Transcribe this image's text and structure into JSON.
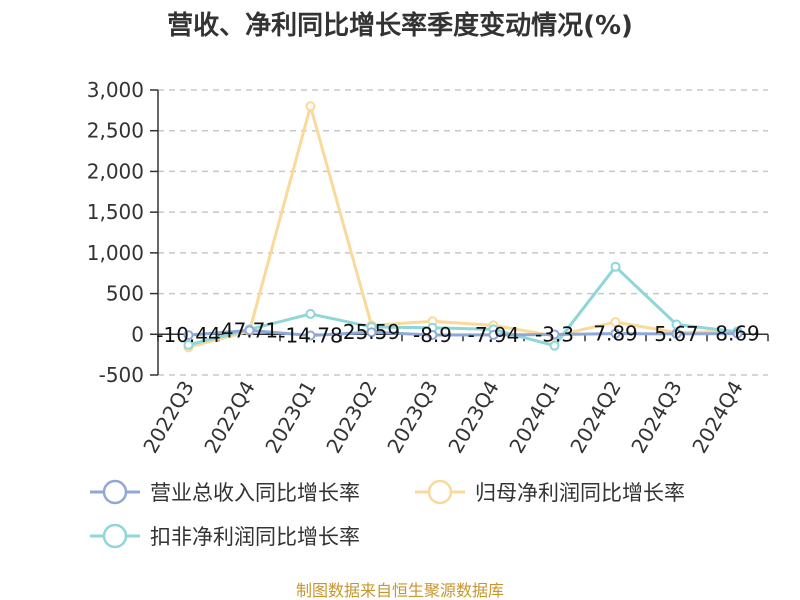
{
  "chart_data": {
    "type": "line",
    "title": "营收、净利同比增长率季度变动情况(%)",
    "categories": [
      "2022Q3",
      "2022Q4",
      "2023Q1",
      "2023Q2",
      "2023Q3",
      "2023Q4",
      "2024Q1",
      "2024Q2",
      "2024Q3",
      "2024Q4"
    ],
    "ylim": [
      -500,
      3000
    ],
    "yticks": [
      -500,
      0,
      500,
      1000,
      1500,
      2000,
      2500,
      3000
    ],
    "ytick_labels": [
      "-500",
      "0",
      "500",
      "1,000",
      "1,500",
      "2,000",
      "2,500",
      "3,000"
    ],
    "grid": true,
    "legend_position": "bottom",
    "series": [
      {
        "name": "营业总收入同比增长率",
        "color": "#8fa9d6",
        "values": [
          -10.44,
          47.71,
          -14.78,
          25.59,
          -8.9,
          -7.94,
          -3.3,
          7.89,
          5.67,
          8.69
        ],
        "labels": [
          "-10.44",
          "47.71",
          "-14.78",
          "25.59",
          "-8.9",
          "-7.94",
          "-3.3",
          "7.89",
          "5.67",
          "8.69"
        ]
      },
      {
        "name": "归母净利润同比增长率",
        "color": "#fad99b",
        "values": [
          -160,
          40,
          2800,
          110,
          160,
          110,
          -20,
          150,
          20,
          40
        ]
      },
      {
        "name": "扣非净利润同比增长率",
        "color": "#8fd6d9",
        "values": [
          -130,
          60,
          250,
          90,
          80,
          60,
          -140,
          830,
          120,
          30
        ]
      }
    ]
  },
  "source_note": "制图数据来自恒生聚源数据库"
}
